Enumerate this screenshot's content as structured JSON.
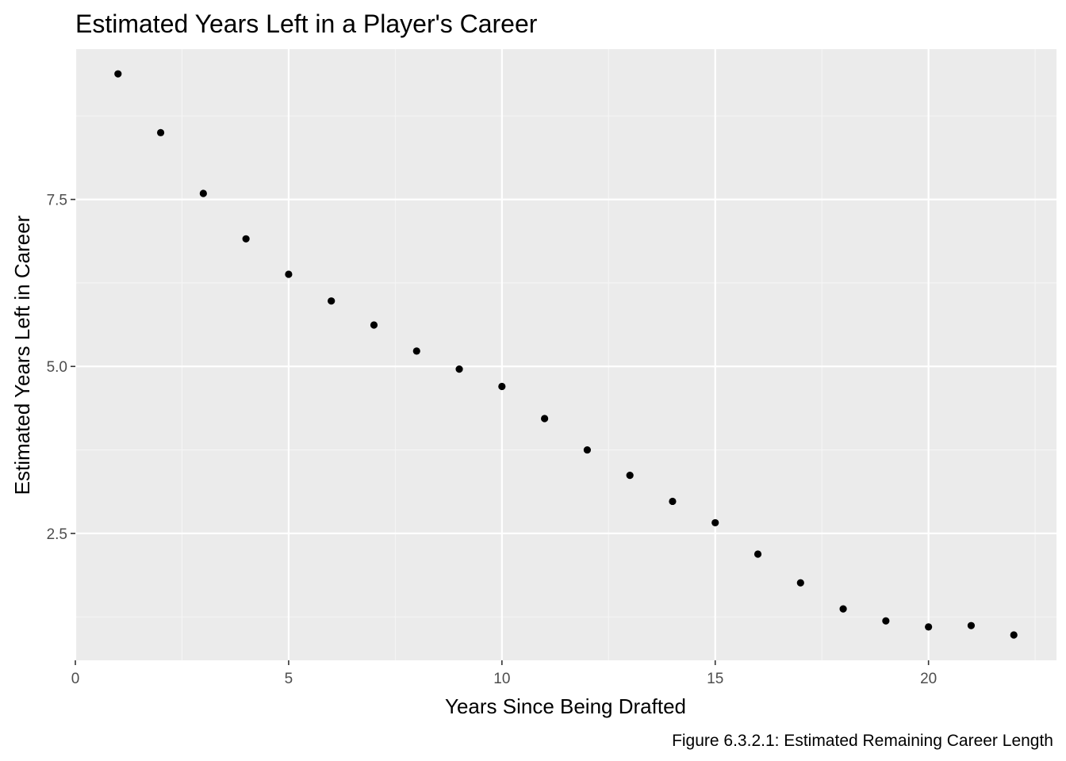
{
  "chart_data": {
    "type": "scatter",
    "title": "Estimated Years Left in a Player's Career",
    "xlabel": "Years Since Being Drafted",
    "ylabel": "Estimated Years Left in Career",
    "caption": "Figure 6.3.2.1: Estimated Remaining Career Length",
    "xlim": [
      0,
      23
    ],
    "ylim": [
      0.6,
      9.75
    ],
    "x_ticks": [
      0,
      5,
      10,
      15,
      20
    ],
    "x_tick_labels": [
      "0",
      "5",
      "10",
      "15",
      "20"
    ],
    "y_ticks": [
      2.5,
      5.0,
      7.5
    ],
    "y_tick_labels": [
      "2.5",
      "5.0",
      "7.5"
    ],
    "grid": true,
    "legend": "none",
    "colors": {
      "panel_background": "#ebebeb",
      "grid_major": "#ffffff",
      "grid_minor": "#f5f5f5",
      "point": "#000000"
    },
    "x": [
      1,
      2,
      3,
      4,
      5,
      6,
      7,
      8,
      9,
      10,
      11,
      12,
      13,
      14,
      15,
      16,
      17,
      18,
      19,
      20,
      21,
      22
    ],
    "y": [
      9.38,
      8.5,
      7.59,
      6.91,
      6.38,
      5.98,
      5.62,
      5.23,
      4.96,
      4.7,
      4.22,
      3.75,
      3.37,
      2.98,
      2.66,
      2.19,
      1.76,
      1.37,
      1.19,
      1.1,
      1.12,
      0.98
    ]
  }
}
